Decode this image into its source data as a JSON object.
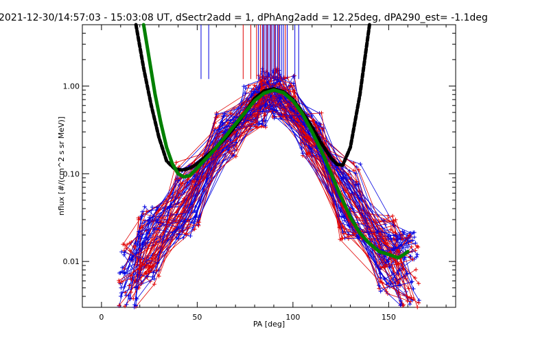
{
  "chart_data": {
    "type": "line",
    "title": "2021-12-30/14:57:03 - 15:03:08 UT, dSectr2add = 1, dPhAng2add = 12.25deg, dPA290_est=  -1.1deg",
    "xlabel": "PA [deg]",
    "ylabel": "nflux [#/(cm^2 s sr MeV)]",
    "xlim": [
      -10,
      185
    ],
    "ylim": [
      0.003,
      5.0
    ],
    "yscale": "log",
    "x_ticks": [
      0,
      50,
      100,
      150
    ],
    "x_tick_labels": [
      "0",
      "50",
      "100",
      "150"
    ],
    "y_ticks": [
      0.01,
      0.1,
      1.0
    ],
    "y_tick_labels": [
      "0.01",
      "0.10",
      "1.00"
    ],
    "grid": false,
    "colors": {
      "red": "#e00000",
      "blue": "#0000e0",
      "black_fit": "#000000",
      "green_fit": "#00e000"
    },
    "series": [
      {
        "color": "black",
        "style": "thick-dashed",
        "x": [
          18,
          22,
          26,
          30,
          34,
          38,
          42,
          46,
          50,
          55,
          60,
          65,
          70,
          75,
          80,
          85,
          90,
          95,
          100,
          105,
          110,
          115,
          120,
          123,
          126,
          130,
          135,
          140
        ],
        "y": [
          5.0,
          1.6,
          0.6,
          0.26,
          0.14,
          0.115,
          0.11,
          0.115,
          0.13,
          0.16,
          0.2,
          0.26,
          0.35,
          0.5,
          0.72,
          0.88,
          0.93,
          0.86,
          0.7,
          0.5,
          0.34,
          0.22,
          0.15,
          0.128,
          0.125,
          0.2,
          0.8,
          5.0
        ]
      },
      {
        "color": "green",
        "style": "thick",
        "x": [
          22,
          25,
          28,
          31,
          34,
          37,
          40,
          43,
          46,
          49,
          52,
          56,
          60,
          65,
          70,
          75,
          80,
          85,
          90,
          95,
          100,
          105,
          110,
          115,
          120,
          125,
          130,
          135,
          140,
          145,
          150,
          155,
          158,
          160
        ],
        "y": [
          5.0,
          2.0,
          0.8,
          0.38,
          0.2,
          0.13,
          0.1,
          0.092,
          0.095,
          0.11,
          0.13,
          0.16,
          0.2,
          0.27,
          0.37,
          0.5,
          0.68,
          0.83,
          0.9,
          0.84,
          0.68,
          0.48,
          0.3,
          0.18,
          0.1,
          0.055,
          0.032,
          0.021,
          0.016,
          0.013,
          0.012,
          0.011,
          0.012,
          0.013
        ]
      }
    ],
    "vertical_markers": {
      "blue_x": [
        52,
        56,
        82,
        84,
        85,
        86,
        87,
        88,
        89,
        90,
        91,
        92,
        93,
        94,
        95,
        97,
        101,
        103
      ],
      "red_x": [
        74,
        78,
        81,
        83,
        84.5,
        86.5,
        88.5,
        90.5,
        92.5,
        96
      ],
      "y_bottom": 1.2
    },
    "scatter_traces_description": "many red and blue thin crossed-marker traces"
  }
}
